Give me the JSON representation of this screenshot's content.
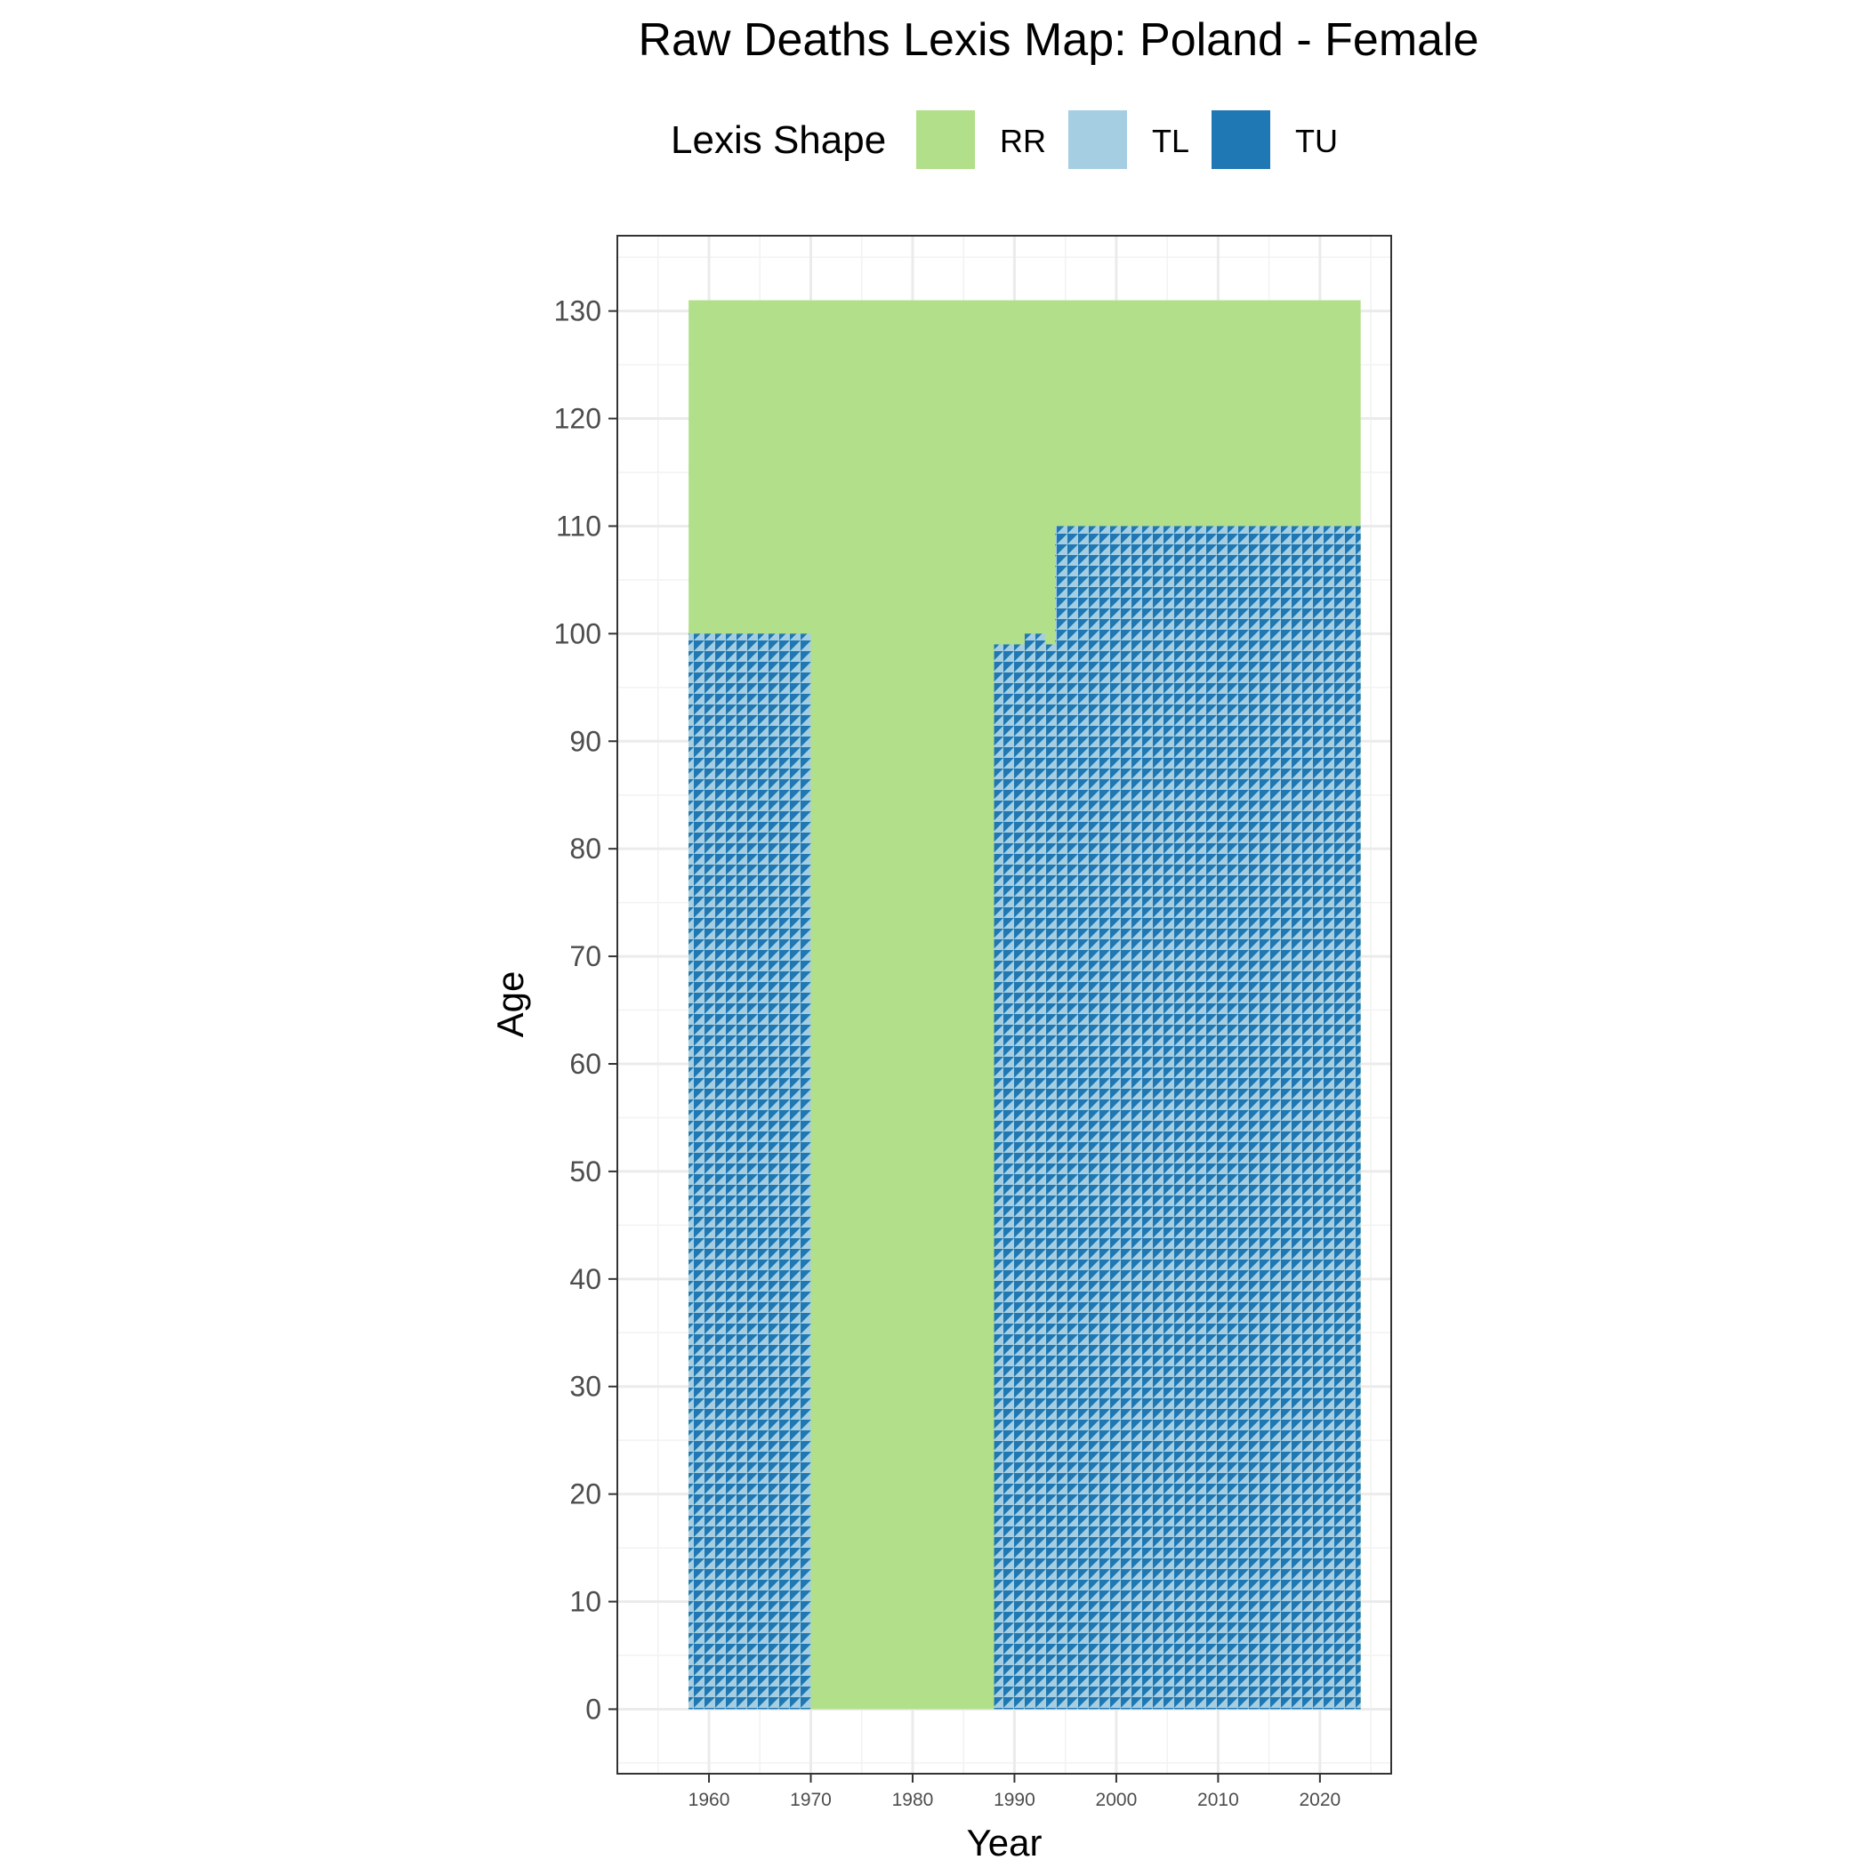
{
  "chart_data": {
    "type": "heatmap",
    "title": "Raw Deaths Lexis Map: Poland - Female",
    "xlabel": "Year",
    "ylabel": "Age",
    "xlim": [
      1951,
      2027
    ],
    "ylim": [
      -6,
      137
    ],
    "x_ticks": [
      "1960",
      "1970",
      "1980",
      "1990",
      "2000",
      "2010",
      "2020"
    ],
    "y_ticks": [
      "0",
      "10",
      "20",
      "30",
      "40",
      "50",
      "60",
      "70",
      "80",
      "90",
      "100",
      "110",
      "120",
      "130"
    ],
    "grid": true,
    "legend": {
      "title": "Lexis Shape",
      "position": "top",
      "entries": [
        {
          "label": "RR",
          "color": "#b2df8a"
        },
        {
          "label": "TL",
          "color": "#a6cee3"
        },
        {
          "label": "TU",
          "color": "#1f78b4"
        }
      ]
    },
    "regions": [
      {
        "shape": "RR",
        "year_start": 1958,
        "year_end": 2024,
        "age_start": 0,
        "age_end": 131,
        "note": "open-age / period rectangles (background)"
      },
      {
        "shape": "TL+TU",
        "year_start": 1958,
        "year_end": 1970,
        "age_start": 0,
        "age_end": 100
      },
      {
        "shape": "TL+TU",
        "year_start": 1988,
        "year_end": 1991,
        "age_start": 0,
        "age_end": 99
      },
      {
        "shape": "TL+TU",
        "year_start": 1991,
        "year_end": 1993,
        "age_start": 0,
        "age_end": 100
      },
      {
        "shape": "TL+TU",
        "year_start": 1993,
        "year_end": 1994,
        "age_start": 0,
        "age_end": 99
      },
      {
        "shape": "TL+TU",
        "year_start": 1994,
        "year_end": 2024,
        "age_start": 0,
        "age_end": 110
      }
    ]
  }
}
